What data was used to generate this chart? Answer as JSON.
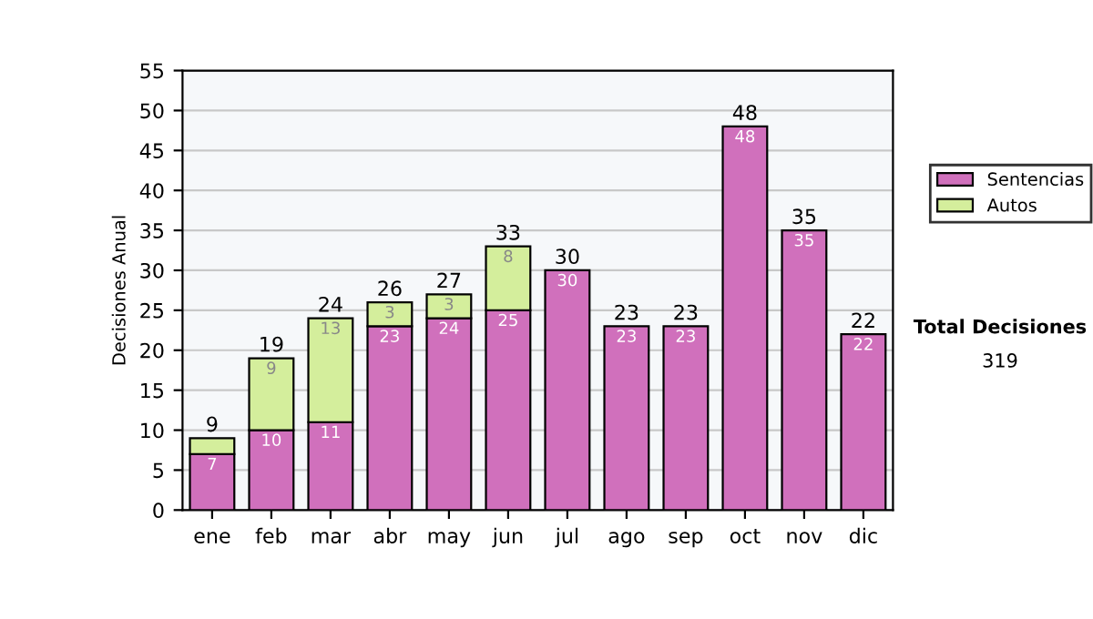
{
  "chart_data": {
    "type": "bar",
    "stacked": true,
    "ylabel": "Decisiones Anual",
    "categories": [
      "ene",
      "feb",
      "mar",
      "abr",
      "may",
      "jun",
      "jul",
      "ago",
      "sep",
      "oct",
      "nov",
      "dic"
    ],
    "series": [
      {
        "name": "Sentencias",
        "color": "#d070bc",
        "values": [
          7,
          10,
          11,
          23,
          24,
          25,
          30,
          23,
          23,
          48,
          35,
          22
        ],
        "value_labels": [
          "7",
          "10",
          "11",
          "23",
          "24",
          "25",
          "30",
          "23",
          "23",
          "48",
          "35",
          "22"
        ]
      },
      {
        "name": "Autos",
        "color": "#d4ee9c",
        "values": [
          2,
          9,
          13,
          3,
          3,
          8,
          null,
          null,
          null,
          null,
          null,
          null
        ],
        "value_labels": [
          null,
          "9",
          "13",
          "3",
          "3",
          "8",
          null,
          null,
          null,
          null,
          null,
          null
        ]
      }
    ],
    "totals": [
      "9",
      "19",
      "24",
      "26",
      "27",
      "33",
      "30",
      "23",
      "23",
      "48",
      "35",
      "22"
    ],
    "ylim": [
      0,
      55
    ],
    "yticks": [
      0,
      5,
      10,
      15,
      20,
      25,
      30,
      35,
      40,
      45,
      50,
      55
    ],
    "grid": "y",
    "legend": "right",
    "annotations": [
      "Total Decisiones",
      "319"
    ]
  }
}
